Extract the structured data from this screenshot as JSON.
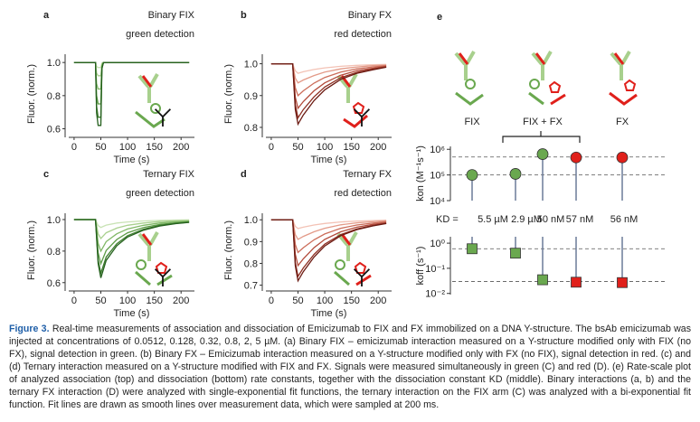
{
  "chart_data": [
    {
      "type": "line",
      "panel_label": "a",
      "title": "Binary FIX",
      "subtitle": "green detection",
      "xlabel": "Time (s)",
      "ylabel": "Fluor. (norm.)",
      "x": [
        0,
        20,
        40,
        42,
        45,
        50,
        52,
        55,
        100,
        150,
        200,
        215
      ],
      "xlim": [
        -10,
        225
      ],
      "xticks": [
        0,
        50,
        100,
        150,
        200
      ],
      "ylim": [
        0.57,
        1.05
      ],
      "yticks": [
        0.6,
        0.8,
        {
          "value": 1,
          "label": "1.0"
        }
      ],
      "series": [
        {
          "color": "#c9e3b5",
          "values": [
            1,
            1,
            1,
            0.976,
            0.97,
            0.97,
            0.997,
            1,
            1,
            1,
            1,
            1
          ]
        },
        {
          "color": "#a9d08e",
          "values": [
            1,
            1,
            1,
            0.936,
            0.92,
            0.92,
            0.992,
            1,
            1,
            1,
            1,
            1
          ]
        },
        {
          "color": "#80b866",
          "values": [
            1,
            1,
            1,
            0.872,
            0.84,
            0.84,
            0.984,
            1,
            1,
            1,
            1,
            1
          ]
        },
        {
          "color": "#5c9b45",
          "values": [
            1,
            1,
            1,
            0.8,
            0.75,
            0.75,
            0.975,
            1,
            1,
            1,
            1,
            1
          ]
        },
        {
          "color": "#3e7d2e",
          "values": [
            1,
            1,
            1,
            0.736,
            0.67,
            0.67,
            0.967,
            1,
            1,
            1,
            1,
            1
          ]
        },
        {
          "color": "#25601e",
          "values": [
            1,
            1,
            1,
            0.696,
            0.62,
            0.62,
            0.962,
            1,
            1,
            1,
            1,
            1
          ]
        }
      ]
    },
    {
      "type": "line",
      "panel_label": "b",
      "title": "Binary FX",
      "subtitle": "red detection",
      "xlabel": "Time (s)",
      "ylabel": "Fluor. (norm.)",
      "x": [
        0,
        20,
        40,
        45,
        50,
        60,
        80,
        100,
        130,
        160,
        190,
        215
      ],
      "xlim": [
        -10,
        225
      ],
      "xticks": [
        0,
        50,
        100,
        150,
        200
      ],
      "ylim": [
        0.78,
        1.03
      ],
      "yticks": [
        0.8,
        0.9,
        {
          "value": 1,
          "label": "1.0"
        }
      ],
      "series": [
        {
          "color": "#f3c2b5",
          "values": [
            1,
            1,
            1,
            0.978,
            0.97,
            0.975,
            0.982,
            0.987,
            0.992,
            0.995,
            0.997,
            0.998
          ]
        },
        {
          "color": "#e39a88",
          "values": [
            1,
            1,
            1,
            0.955,
            0.94,
            0.949,
            0.963,
            0.974,
            0.984,
            0.99,
            0.994,
            0.996
          ]
        },
        {
          "color": "#cc6d5a",
          "values": [
            1,
            1,
            1,
            0.925,
            0.9,
            0.915,
            0.939,
            0.957,
            0.974,
            0.984,
            0.99,
            0.994
          ]
        },
        {
          "color": "#b24a3a",
          "values": [
            1,
            1,
            1,
            0.895,
            0.86,
            0.881,
            0.915,
            0.94,
            0.964,
            0.978,
            0.986,
            0.992
          ]
        },
        {
          "color": "#8e2f22",
          "values": [
            1,
            1,
            1,
            0.872,
            0.83,
            0.856,
            0.896,
            0.927,
            0.956,
            0.973,
            0.983,
            0.99
          ]
        },
        {
          "color": "#6b1a12",
          "values": [
            1,
            1,
            1,
            0.857,
            0.81,
            0.839,
            0.884,
            0.918,
            0.951,
            0.97,
            0.981,
            0.989
          ]
        }
      ]
    },
    {
      "type": "line",
      "panel_label": "c",
      "title": "Ternary FIX",
      "subtitle": "green detection",
      "xlabel": "Time (s)",
      "ylabel": "Fluor. (norm.)",
      "x": [
        0,
        20,
        40,
        45,
        50,
        60,
        80,
        100,
        130,
        160,
        190,
        215
      ],
      "xlim": [
        -10,
        225
      ],
      "xticks": [
        0,
        50,
        100,
        150,
        200
      ],
      "ylim": [
        0.57,
        1.04
      ],
      "yticks": [
        0.6,
        0.8,
        {
          "value": 1,
          "label": "1.0"
        }
      ],
      "series": [
        {
          "color": "#c9e3b5",
          "values": [
            1,
            1,
            1,
            0.962,
            0.95,
            0.965,
            0.978,
            0.985,
            0.991,
            0.995,
            0.997,
            0.998
          ]
        },
        {
          "color": "#a9d08e",
          "values": [
            1,
            1,
            1,
            0.91,
            0.88,
            0.916,
            0.946,
            0.964,
            0.978,
            0.987,
            0.992,
            0.994
          ]
        },
        {
          "color": "#80b866",
          "values": [
            1,
            1,
            1,
            0.85,
            0.8,
            0.86,
            0.91,
            0.94,
            0.964,
            0.978,
            0.986,
            0.99
          ]
        },
        {
          "color": "#5c9b45",
          "values": [
            1,
            1,
            1,
            0.79,
            0.72,
            0.804,
            0.874,
            0.916,
            0.95,
            0.969,
            0.98,
            0.986
          ]
        },
        {
          "color": "#3e7d2e",
          "values": [
            1,
            1,
            1,
            0.745,
            0.66,
            0.762,
            0.847,
            0.898,
            0.939,
            0.963,
            0.976,
            0.983
          ]
        },
        {
          "color": "#25601e",
          "values": [
            1,
            1,
            1,
            0.722,
            0.63,
            0.741,
            0.834,
            0.889,
            0.933,
            0.959,
            0.974,
            0.982
          ]
        }
      ]
    },
    {
      "type": "line",
      "panel_label": "d",
      "title": "Ternary FX",
      "subtitle": "red detection",
      "xlabel": "Time (s)",
      "ylabel": "Fluor. (norm.)",
      "x": [
        0,
        20,
        40,
        45,
        50,
        60,
        80,
        100,
        130,
        160,
        190,
        215
      ],
      "xlim": [
        -10,
        225
      ],
      "xticks": [
        0,
        50,
        100,
        150,
        200
      ],
      "ylim": [
        0.69,
        1.03
      ],
      "yticks": [
        0.7,
        0.8,
        0.9,
        {
          "value": 1,
          "label": "1.0"
        }
      ],
      "series": [
        {
          "color": "#f3c2b5",
          "values": [
            1,
            1,
            1,
            0.97,
            0.96,
            0.966,
            0.976,
            0.983,
            0.99,
            0.994,
            0.996,
            0.998
          ]
        },
        {
          "color": "#e39a88",
          "values": [
            1,
            1,
            1,
            0.932,
            0.91,
            0.924,
            0.945,
            0.961,
            0.977,
            0.986,
            0.991,
            0.995
          ]
        },
        {
          "color": "#cc6d5a",
          "values": [
            1,
            1,
            1,
            0.887,
            0.85,
            0.872,
            0.908,
            0.935,
            0.961,
            0.976,
            0.985,
            0.991
          ]
        },
        {
          "color": "#b24a3a",
          "values": [
            1,
            1,
            1,
            0.842,
            0.79,
            0.821,
            0.872,
            0.91,
            0.945,
            0.966,
            0.979,
            0.987
          ]
        },
        {
          "color": "#8e2f22",
          "values": [
            1,
            1,
            1,
            0.805,
            0.74,
            0.779,
            0.841,
            0.888,
            0.932,
            0.958,
            0.974,
            0.984
          ]
        },
        {
          "color": "#6b1a12",
          "values": [
            1,
            1,
            1,
            0.79,
            0.72,
            0.762,
            0.829,
            0.88,
            0.927,
            0.955,
            0.972,
            0.983
          ]
        }
      ]
    },
    {
      "type": "lollipop",
      "panel_label": "e",
      "groups": [
        "FIX",
        "FIX + FX",
        "FX"
      ],
      "ylabel": "kon (M⁻¹s⁻¹)",
      "log_scale": true,
      "ylim": [
        10000,
        1300000
      ],
      "yticks": [
        {
          "value": 10000,
          "label": "10⁴"
        },
        {
          "value": 100000,
          "label": "10⁵"
        },
        {
          "value": 1000000,
          "label": "10⁶"
        }
      ],
      "values": [
        100000,
        110000,
        650000,
        480000,
        480000
      ],
      "colors": [
        "#6aa84f",
        "#6aa84f",
        "#6aa84f",
        "#e0201b",
        "#e0201b"
      ],
      "marker": "circle",
      "stem_from": "bottom",
      "hlines": [
        100000,
        500000
      ],
      "kd_title": "KD =",
      "kd_labels": [
        "5.5 µM",
        "2.9 µM",
        "50 nM",
        "57 nM",
        "56 nM"
      ]
    },
    {
      "type": "lollipop",
      "ylabel": "koff (s⁻¹)",
      "log_scale": true,
      "ylim": [
        0.009,
        1.8
      ],
      "yticks": [
        {
          "value": 0.01,
          "label": "10⁻²"
        },
        {
          "value": 0.1,
          "label": "10⁻¹"
        },
        {
          "value": 1,
          "label": "10⁰"
        }
      ],
      "values": [
        0.6,
        0.4,
        0.035,
        0.028,
        0.027
      ],
      "colors": [
        "#6aa84f",
        "#6aa84f",
        "#6aa84f",
        "#e0201b",
        "#e0201b"
      ],
      "marker": "square",
      "stem_from": "top",
      "hlines": [
        0.6,
        0.03
      ]
    }
  ],
  "caption": {
    "label": "Figure 3.",
    "text": "Real-time measurements of association and dissociation of Emicizumab to FIX and FX immobilized on a DNA Y-structure. The bsAb emicizumab was injected at concentrations of 0.0512, 0.128, 0.32, 0.8, 2, 5 µM. (a) Binary FIX – emicizumab interaction measured on a Y-structure modified only with FIX (no FX), signal detection in green. (b) Binary FX – Emicizumab interaction measured on a Y-structure modified only with FX (no FIX), signal detection in red. (c) and (d) Ternary interaction measured on a Y-structure modified with FIX and FX. Signals were measured simultaneously in green (C) and red (D). (e) Rate-scale plot of analyzed association (top) and dissociation (bottom) rate constants, together with the dissociation constant KD (middle). Binary interactions (a, b) and the ternary FX interaction (D) were analyzed with single-exponential fit functions, the ternary interaction on the FIX arm (C) was analyzed with a bi-exponential fit function. Fit lines are drawn as smooth lines over measurement data, which were sampled at 200 ms."
  }
}
